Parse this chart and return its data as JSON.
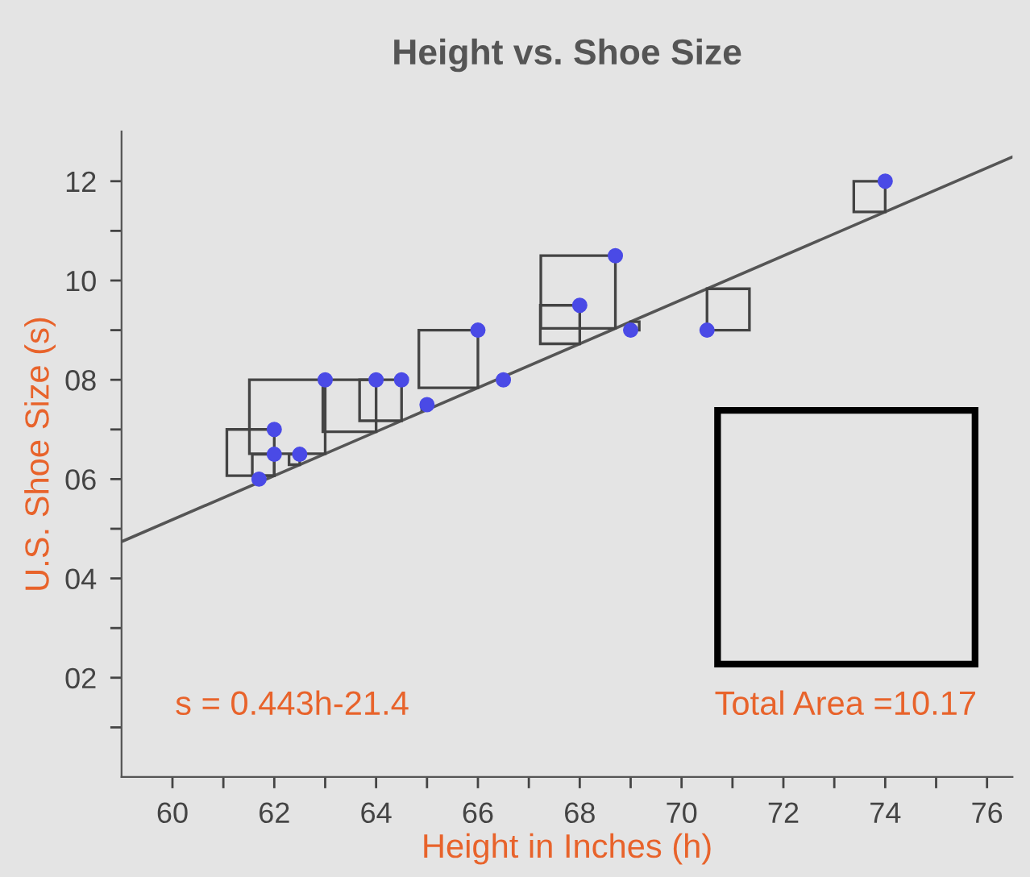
{
  "chart_data": {
    "type": "scatter",
    "title": "Height vs. Shoe Size",
    "xlabel": "Height in Inches (h)",
    "ylabel": "U.S. Shoe Size (s)",
    "annotations": [
      "s = 0.443h-21.4",
      "Total Area =10.17"
    ],
    "series": [
      {
        "color": "#4a4ae6",
        "x": [
          61.7,
          62,
          62,
          62.5,
          63,
          64,
          64.5,
          65,
          66,
          66.5,
          68,
          68.7,
          69,
          70.5,
          74
        ],
        "values": [
          6,
          6.5,
          7,
          6.5,
          8,
          8,
          8,
          7.5,
          9,
          8,
          9.5,
          10.5,
          9,
          9,
          12
        ]
      },
      {
        "type": "line",
        "marker": "none",
        "color": "#555555",
        "x": [
          59,
          76.5
        ],
        "values": [
          4.74,
          12.49
        ]
      }
    ],
    "xlim": [
      59,
      76.5
    ],
    "ylim": [
      0,
      13
    ],
    "xticks": [
      60,
      {
        "value": 61,
        "label": null
      },
      62,
      {
        "value": 63,
        "label": null
      },
      64,
      {
        "value": 65,
        "label": null
      },
      66,
      {
        "value": 67,
        "label": null
      },
      68,
      {
        "value": 69,
        "label": null
      },
      70,
      {
        "value": 71,
        "label": null
      },
      72,
      {
        "value": 73,
        "label": null
      },
      74,
      {
        "value": 75,
        "label": null
      },
      76
    ],
    "yticks": [
      {
        "value": 1,
        "label": null
      },
      {
        "value": 2,
        "label": "02"
      },
      {
        "value": 3,
        "label": null
      },
      {
        "value": 4,
        "label": "04"
      },
      {
        "value": 5,
        "label": null
      },
      {
        "value": 6,
        "label": "06"
      },
      {
        "value": 7,
        "label": null
      },
      {
        "value": 8,
        "label": "08"
      },
      {
        "value": 9,
        "label": null
      },
      {
        "value": 10,
        "label": "10"
      },
      {
        "value": 11,
        "label": null
      },
      {
        "value": 12,
        "label": "12"
      }
    ],
    "grid": false,
    "legend": false,
    "marker": "circle"
  }
}
